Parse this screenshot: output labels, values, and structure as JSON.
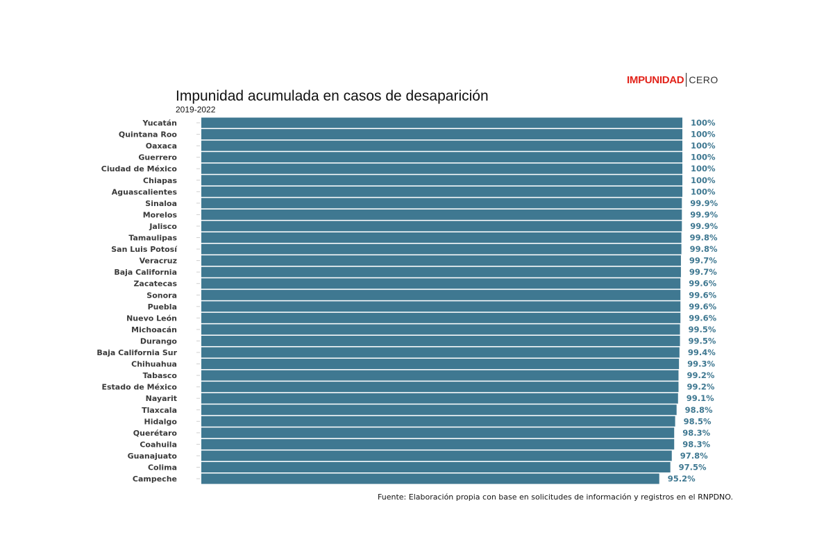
{
  "logo": {
    "brand": "IMPUNIDAD",
    "suffix": "CERO"
  },
  "colors": {
    "bar": "#3f7891",
    "value_label": "#3f7891",
    "logo_red": "#e2231a",
    "category_label": "#3a3a3a"
  },
  "source": "Fuente: Elaboración propia con base en solicitudes de información y registros en el RNPDNO.",
  "chart_data": {
    "type": "bar",
    "orientation": "horizontal",
    "title": "Impunidad acumulada en casos de desaparición",
    "subtitle": "2019-2022",
    "unit": "%",
    "xlim": [
      0,
      100
    ],
    "grid": false,
    "categories": [
      "Yucatán",
      "Quintana Roo",
      "Oaxaca",
      "Guerrero",
      "Ciudad de México",
      "Chiapas",
      "Aguascalientes",
      "Sinaloa",
      "Morelos",
      "Jalisco",
      "Tamaulipas",
      "San Luis Potosí",
      "Veracruz",
      "Baja California",
      "Zacatecas",
      "Sonora",
      "Puebla",
      "Nuevo León",
      "Michoacán",
      "Durango",
      "Baja California Sur",
      "Chihuahua",
      "Tabasco",
      "Estado de México",
      "Nayarit",
      "Tlaxcala",
      "Hidalgo",
      "Querétaro",
      "Coahuila",
      "Guanajuato",
      "Colima",
      "Campeche"
    ],
    "values": [
      100,
      100,
      100,
      100,
      100,
      100,
      100,
      99.9,
      99.9,
      99.9,
      99.8,
      99.8,
      99.7,
      99.7,
      99.6,
      99.6,
      99.6,
      99.6,
      99.5,
      99.5,
      99.4,
      99.3,
      99.2,
      99.2,
      99.1,
      98.8,
      98.5,
      98.3,
      98.3,
      97.8,
      97.5,
      95.2
    ],
    "labels": [
      "100%",
      "100%",
      "100%",
      "100%",
      "100%",
      "100%",
      "100%",
      "99.9%",
      "99.9%",
      "99.9%",
      "99.8%",
      "99.8%",
      "99.7%",
      "99.7%",
      "99.6%",
      "99.6%",
      "99.6%",
      "99.6%",
      "99.5%",
      "99.5%",
      "99.4%",
      "99.3%",
      "99.2%",
      "99.2%",
      "99.1%",
      "98.8%",
      "98.5%",
      "98.3%",
      "98.3%",
      "97.8%",
      "97.5%",
      "95.2%"
    ]
  }
}
